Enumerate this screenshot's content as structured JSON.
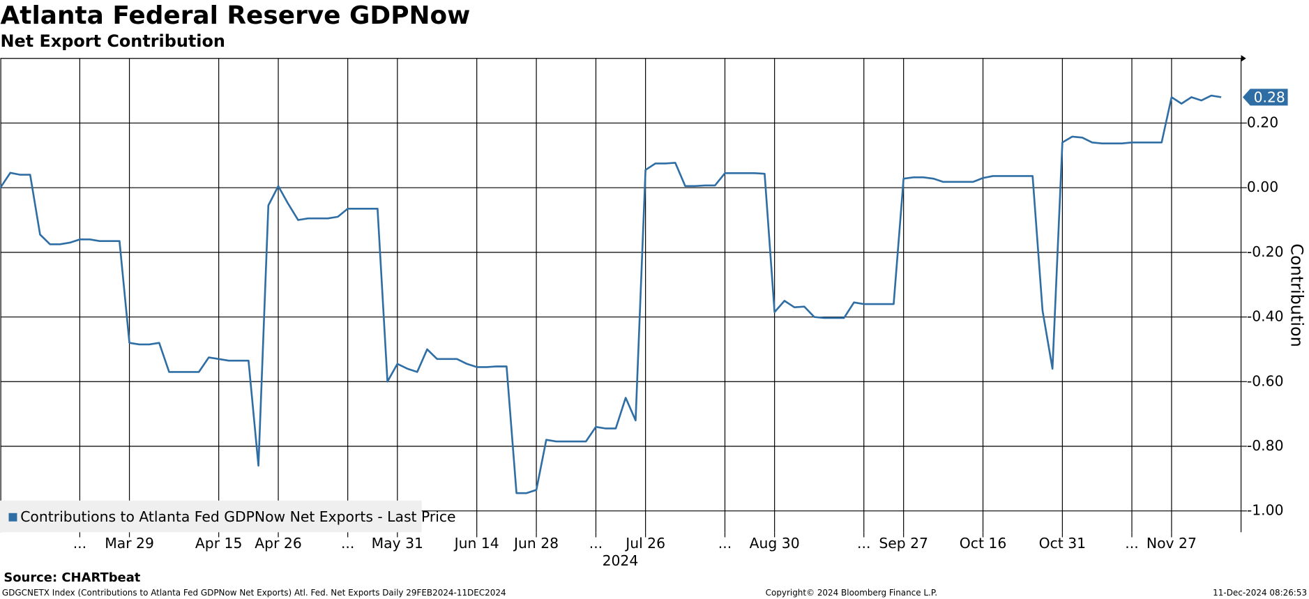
{
  "chart_data": {
    "type": "line",
    "title": "Atlanta Federal Reserve GDPNow",
    "subtitle": "Net Export Contribution",
    "y_axis_label": "Contribution",
    "x_group_label": "2024",
    "source": "Source: CHARTbeat",
    "footer_left": "GDGCNETX Index (Contributions to Atlanta Fed GDPNow Net Exports) Atl. Fed. Net Exports  Daily 29FEB2024-11DEC2024",
    "footer_center": "Copyright© 2024 Bloomberg Finance L.P.",
    "footer_right": "11-Dec-2024 08:26:53",
    "categories": [
      null,
      null,
      null,
      null,
      null,
      null,
      null,
      null,
      "...",
      null,
      null,
      null,
      null,
      "Mar 29",
      null,
      null,
      null,
      null,
      null,
      null,
      null,
      null,
      "Apr 15",
      null,
      null,
      null,
      null,
      null,
      "Apr 26",
      null,
      null,
      null,
      null,
      null,
      null,
      "...",
      null,
      null,
      null,
      null,
      "May 31",
      null,
      null,
      null,
      null,
      null,
      null,
      null,
      "Jun 14",
      null,
      null,
      null,
      null,
      null,
      "Jun 28",
      null,
      null,
      null,
      null,
      null,
      "...",
      null,
      null,
      null,
      null,
      "Jul 26",
      null,
      null,
      null,
      null,
      null,
      null,
      null,
      "...",
      null,
      null,
      null,
      null,
      "Aug 30",
      null,
      null,
      null,
      null,
      null,
      null,
      null,
      null,
      "...",
      null,
      null,
      null,
      "Sep 27",
      null,
      null,
      null,
      null,
      null,
      null,
      null,
      "Oct 16",
      null,
      null,
      null,
      null,
      null,
      null,
      null,
      "Oct 31",
      null,
      null,
      null,
      null,
      null,
      null,
      "...",
      null,
      null,
      null,
      "Nov 27",
      null,
      null,
      null,
      null,
      null
    ],
    "series": [
      {
        "name": "Contributions to Atlanta Fed GDPNow Net Exports - Last Price",
        "color": "#2f6ea5",
        "values": [
          0,
          0.046,
          0.04,
          0.04,
          -0.145,
          -0.175,
          -0.175,
          -0.17,
          -0.16,
          -0.16,
          -0.165,
          -0.165,
          -0.165,
          -0.48,
          -0.485,
          -0.485,
          -0.48,
          -0.57,
          -0.57,
          -0.57,
          -0.57,
          -0.525,
          -0.53,
          -0.535,
          -0.535,
          -0.535,
          -0.86,
          -0.055,
          0.005,
          -0.05,
          -0.1,
          -0.095,
          -0.095,
          -0.095,
          -0.09,
          -0.065,
          -0.065,
          -0.065,
          -0.065,
          -0.6,
          -0.545,
          -0.56,
          -0.57,
          -0.5,
          -0.53,
          -0.53,
          -0.53,
          -0.545,
          -0.555,
          -0.555,
          -0.553,
          -0.553,
          -0.945,
          -0.945,
          -0.935,
          -0.78,
          -0.785,
          -0.785,
          -0.785,
          -0.785,
          -0.74,
          -0.745,
          -0.745,
          -0.65,
          -0.72,
          0.055,
          0.075,
          0.075,
          0.077,
          0.005,
          0.005,
          0.007,
          0.007,
          0.045,
          0.045,
          0.045,
          0.045,
          0.043,
          -0.385,
          -0.35,
          -0.37,
          -0.368,
          -0.4,
          -0.403,
          -0.403,
          -0.403,
          -0.355,
          -0.36,
          -0.36,
          -0.36,
          -0.36,
          0.028,
          0.032,
          0.032,
          0.028,
          0.018,
          0.018,
          0.018,
          0.018,
          0.03,
          0.036,
          0.036,
          0.036,
          0.036,
          0.036,
          -0.38,
          -0.56,
          0.14,
          0.158,
          0.155,
          0.14,
          0.137,
          0.137,
          0.137,
          0.14,
          0.14,
          0.14,
          0.14,
          0.28,
          0.26,
          0.28,
          0.27,
          0.285,
          0.28
        ]
      }
    ],
    "ylim": [
      -1.066,
      0.4
    ],
    "yticks": [
      {
        "value": -1,
        "label": "-1.00"
      },
      {
        "value": -0.8,
        "label": "-0.80"
      },
      {
        "value": -0.6,
        "label": "-0.60"
      },
      {
        "value": -0.4,
        "label": "-0.40"
      },
      {
        "value": -0.2,
        "label": "-0.20"
      },
      {
        "value": 0,
        "label": "0.00"
      },
      {
        "value": 0.2,
        "label": "0.20"
      }
    ],
    "y_axis_side": "right",
    "grid": true,
    "legend": "bottom-left"
  }
}
